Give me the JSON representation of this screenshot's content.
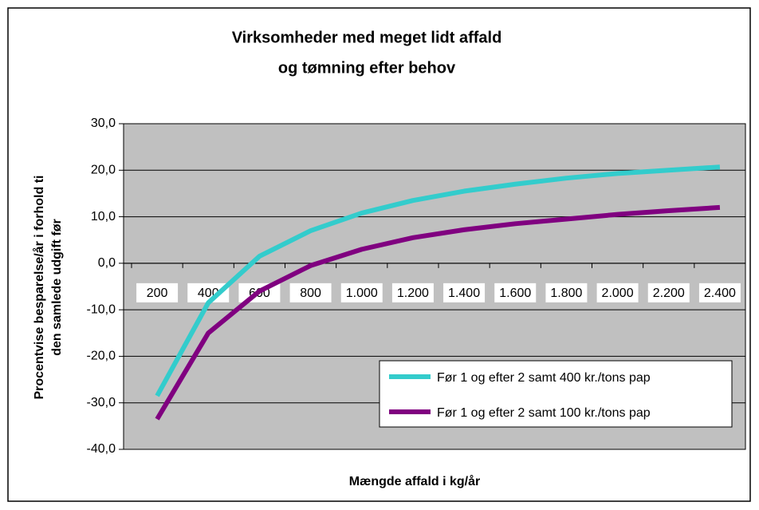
{
  "chart_data": {
    "type": "line",
    "title": [
      "Virksomheder med meget lidt affald",
      "og tømning efter behov"
    ],
    "y_label": [
      "Procentvise besparelse/år i forhold ti",
      "den samlede udgift før"
    ],
    "x_label": "Mængde affald i kg/år",
    "categories": [
      "200",
      "400",
      "600",
      "800",
      "1.000",
      "1.200",
      "1.400",
      "1.600",
      "1.800",
      "2.000",
      "2.200",
      "2.400"
    ],
    "series": [
      {
        "name": "Før 1 og efter 2 samt 400 kr./tons pap",
        "color": "#33cccc",
        "values": [
          -28.5,
          -8.5,
          1.5,
          7,
          10.8,
          13.5,
          15.5,
          17,
          18.3,
          19.3,
          20,
          20.7
        ]
      },
      {
        "name": "Før 1 og efter 2 samt 100 kr./tons pap",
        "color": "#800080",
        "values": [
          -33.5,
          -15,
          -6,
          -0.5,
          3,
          5.5,
          7.2,
          8.5,
          9.5,
          10.5,
          11.3,
          12
        ]
      }
    ],
    "ylim": [
      -40,
      30
    ],
    "yticks": [
      {
        "value": -40,
        "label": "-40,0"
      },
      {
        "value": -30,
        "label": "-30,0"
      },
      {
        "value": -20,
        "label": "-20,0"
      },
      {
        "value": -10,
        "label": "-10,0"
      },
      {
        "value": 0,
        "label": "0,0"
      },
      {
        "value": 10,
        "label": "10,0"
      },
      {
        "value": 20,
        "label": "20,0"
      },
      {
        "value": 30,
        "label": "30,0"
      }
    ],
    "grid": true,
    "legend": "lower right",
    "plot_background": "#c0c0c0"
  }
}
